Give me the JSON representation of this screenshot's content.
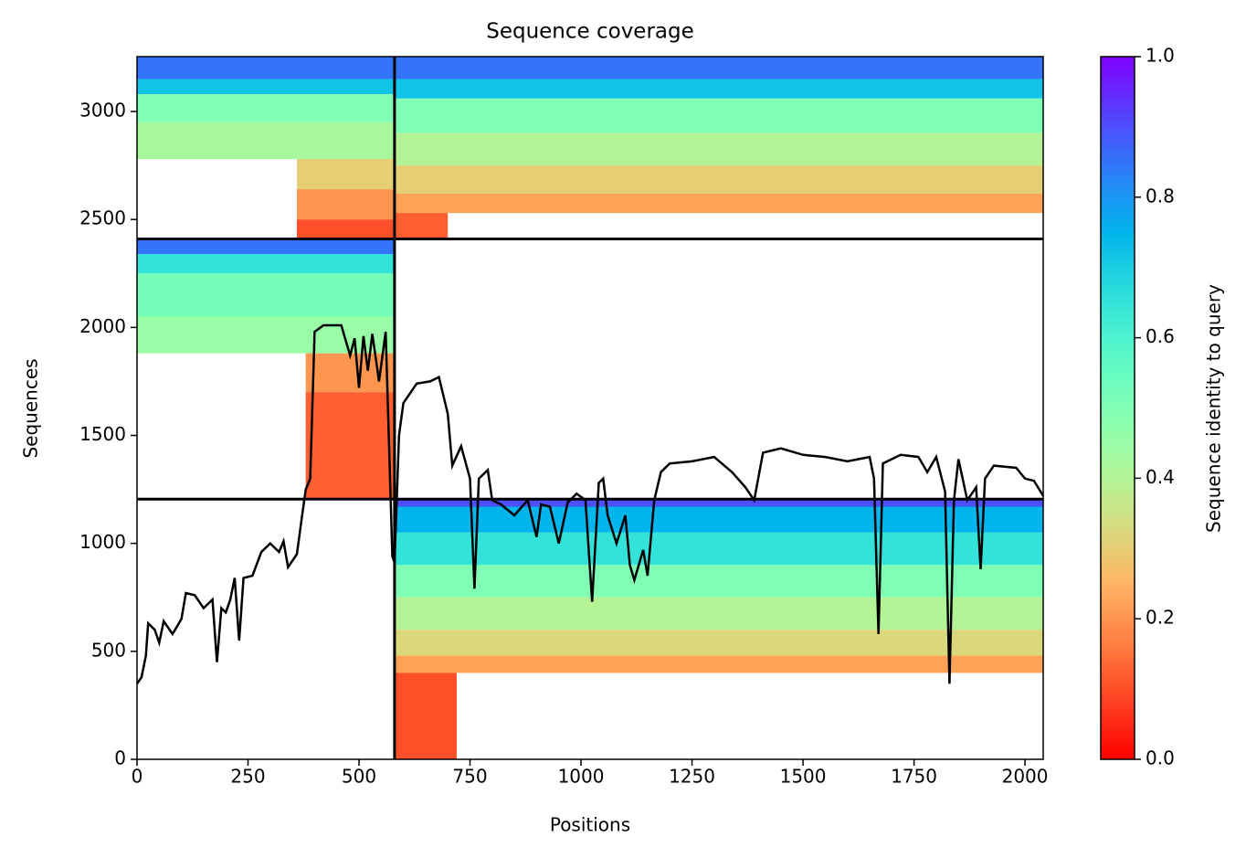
{
  "chart_data": {
    "type": "coverage",
    "title": "Sequence coverage",
    "xlabel": "Positions",
    "ylabel": "Sequences",
    "colorbar_label": "Sequence identity to query",
    "colormap": "rainbow_r",
    "xlim": [
      0,
      2041
    ],
    "ylim": [
      0,
      3254
    ],
    "xticks": [
      0,
      250,
      500,
      750,
      1000,
      1250,
      1500,
      1750,
      2000
    ],
    "yticks": [
      0,
      500,
      1000,
      1500,
      2000,
      2500,
      3000
    ],
    "clim": [
      0,
      1
    ],
    "cticks": [
      0.0,
      0.2,
      0.4,
      0.6,
      0.8,
      1.0
    ],
    "block_boundaries": {
      "x": [
        580
      ],
      "y": [
        1205,
        2410
      ]
    },
    "bands": [
      {
        "x0": 0,
        "x1": 580,
        "y0": 3150,
        "y1": 3254,
        "identity": 0.85
      },
      {
        "x0": 0,
        "x1": 580,
        "y0": 3080,
        "y1": 3150,
        "identity": 0.72
      },
      {
        "x0": 0,
        "x1": 580,
        "y0": 2950,
        "y1": 3080,
        "identity": 0.5
      },
      {
        "x0": 0,
        "x1": 580,
        "y0": 2780,
        "y1": 2950,
        "identity": 0.42
      },
      {
        "x0": 360,
        "x1": 580,
        "y0": 2640,
        "y1": 2780,
        "identity": 0.3
      },
      {
        "x0": 360,
        "x1": 580,
        "y0": 2500,
        "y1": 2640,
        "identity": 0.2
      },
      {
        "x0": 360,
        "x1": 580,
        "y0": 2410,
        "y1": 2500,
        "identity": 0.1
      },
      {
        "x0": 580,
        "x1": 2041,
        "y0": 3150,
        "y1": 3254,
        "identity": 0.85
      },
      {
        "x0": 580,
        "x1": 2041,
        "y0": 3060,
        "y1": 3150,
        "identity": 0.72
      },
      {
        "x0": 580,
        "x1": 2041,
        "y0": 2900,
        "y1": 3060,
        "identity": 0.5
      },
      {
        "x0": 580,
        "x1": 2041,
        "y0": 2750,
        "y1": 2900,
        "identity": 0.4
      },
      {
        "x0": 580,
        "x1": 2041,
        "y0": 2620,
        "y1": 2750,
        "identity": 0.3
      },
      {
        "x0": 580,
        "x1": 2041,
        "y0": 2530,
        "y1": 2620,
        "identity": 0.22
      },
      {
        "x0": 580,
        "x1": 700,
        "y0": 2410,
        "y1": 2530,
        "identity": 0.12
      },
      {
        "x0": 0,
        "x1": 580,
        "y0": 2340,
        "y1": 2410,
        "identity": 0.85
      },
      {
        "x0": 0,
        "x1": 580,
        "y0": 2250,
        "y1": 2340,
        "identity": 0.65
      },
      {
        "x0": 0,
        "x1": 580,
        "y0": 2050,
        "y1": 2250,
        "identity": 0.52
      },
      {
        "x0": 0,
        "x1": 580,
        "y0": 1880,
        "y1": 2050,
        "identity": 0.45
      },
      {
        "x0": 380,
        "x1": 580,
        "y0": 1700,
        "y1": 1880,
        "identity": 0.2
      },
      {
        "x0": 380,
        "x1": 580,
        "y0": 1205,
        "y1": 1700,
        "identity": 0.12
      },
      {
        "x0": 580,
        "x1": 2041,
        "y0": 1170,
        "y1": 1205,
        "identity": 0.9
      },
      {
        "x0": 580,
        "x1": 2041,
        "y0": 1050,
        "y1": 1170,
        "identity": 0.75
      },
      {
        "x0": 580,
        "x1": 2041,
        "y0": 900,
        "y1": 1050,
        "identity": 0.65
      },
      {
        "x0": 580,
        "x1": 2041,
        "y0": 750,
        "y1": 900,
        "identity": 0.5
      },
      {
        "x0": 580,
        "x1": 2041,
        "y0": 600,
        "y1": 750,
        "identity": 0.4
      },
      {
        "x0": 580,
        "x1": 2041,
        "y0": 480,
        "y1": 600,
        "identity": 0.32
      },
      {
        "x0": 580,
        "x1": 2041,
        "y0": 400,
        "y1": 480,
        "identity": 0.22
      },
      {
        "x0": 580,
        "x1": 720,
        "y0": 0,
        "y1": 400,
        "identity": 0.1
      }
    ],
    "coverage": {
      "color": "#000000",
      "x": [
        0,
        10,
        20,
        25,
        40,
        50,
        60,
        80,
        100,
        110,
        130,
        150,
        170,
        180,
        190,
        200,
        210,
        220,
        230,
        240,
        260,
        280,
        300,
        320,
        330,
        340,
        360,
        370,
        380,
        390,
        400,
        420,
        460,
        480,
        490,
        500,
        510,
        520,
        530,
        545,
        560,
        570,
        575,
        580,
        590,
        600,
        630,
        660,
        680,
        700,
        710,
        730,
        750,
        760,
        770,
        790,
        800,
        820,
        850,
        880,
        900,
        910,
        930,
        950,
        970,
        990,
        1010,
        1025,
        1040,
        1050,
        1060,
        1080,
        1100,
        1110,
        1120,
        1140,
        1150,
        1165,
        1180,
        1200,
        1250,
        1300,
        1340,
        1370,
        1390,
        1410,
        1450,
        1500,
        1550,
        1600,
        1650,
        1660,
        1670,
        1680,
        1720,
        1760,
        1780,
        1800,
        1820,
        1830,
        1840,
        1850,
        1870,
        1890,
        1900,
        1910,
        1930,
        1980,
        2000,
        2020,
        2041
      ],
      "values": [
        350,
        380,
        480,
        630,
        600,
        540,
        640,
        580,
        650,
        770,
        760,
        700,
        740,
        450,
        700,
        680,
        740,
        840,
        550,
        840,
        850,
        960,
        1000,
        960,
        1010,
        890,
        950,
        1100,
        1250,
        1300,
        1980,
        2010,
        2010,
        1870,
        1950,
        1720,
        1960,
        1800,
        1970,
        1750,
        1980,
        1300,
        940,
        910,
        1500,
        1650,
        1740,
        1750,
        1770,
        1600,
        1360,
        1450,
        1300,
        790,
        1300,
        1340,
        1200,
        1180,
        1130,
        1200,
        1030,
        1180,
        1170,
        1000,
        1190,
        1230,
        1200,
        730,
        1280,
        1300,
        1130,
        1000,
        1130,
        900,
        830,
        970,
        850,
        1200,
        1330,
        1370,
        1380,
        1400,
        1330,
        1260,
        1200,
        1420,
        1440,
        1410,
        1400,
        1380,
        1400,
        1300,
        580,
        1370,
        1410,
        1400,
        1330,
        1400,
        1240,
        350,
        1200,
        1390,
        1200,
        1260,
        880,
        1300,
        1360,
        1350,
        1300,
        1290,
        1220
      ]
    }
  }
}
